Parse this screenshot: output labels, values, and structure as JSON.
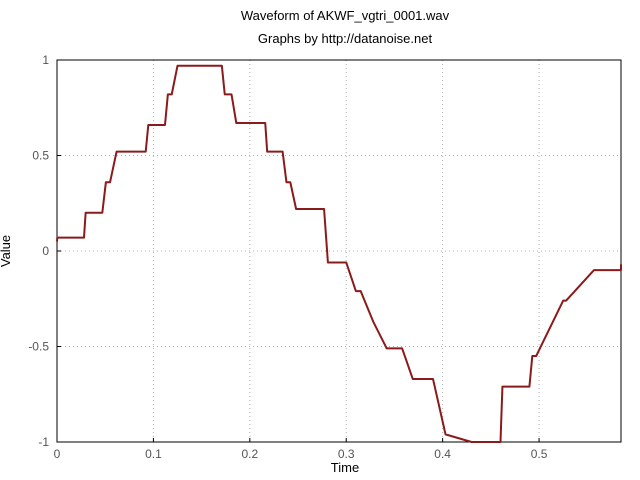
{
  "chart_data": {
    "type": "line",
    "title": "Waveform of AKWF_vgtri_0001.wav",
    "subtitle": "Graphs by http://datanoise.net",
    "xlabel": "Time",
    "ylabel": "Value",
    "xlim": [
      0,
      0.585
    ],
    "ylim": [
      -1,
      1
    ],
    "grid": true,
    "x_ticks": [
      {
        "value": 0,
        "label": "0"
      },
      {
        "value": 0.1,
        "label": "0.1"
      },
      {
        "value": 0.2,
        "label": "0.2"
      },
      {
        "value": 0.3,
        "label": "0.3"
      },
      {
        "value": 0.4,
        "label": "0.4"
      },
      {
        "value": 0.5,
        "label": "0.5"
      }
    ],
    "y_ticks": [
      {
        "value": 1,
        "label": "1"
      },
      {
        "value": 0.5,
        "label": "0.5"
      },
      {
        "value": 0,
        "label": "0"
      },
      {
        "value": -0.5,
        "label": "-0.5"
      },
      {
        "value": -1,
        "label": "-1"
      }
    ],
    "line_color": "#8b1a1a",
    "series": [
      {
        "x": [
          0,
          0.0003,
          0.028,
          0.0297,
          0.047,
          0.0507,
          0.055,
          0.0618,
          0.092,
          0.0947,
          0.112,
          0.115,
          0.119,
          0.125,
          0.171,
          0.174,
          0.181,
          0.186,
          0.216,
          0.218,
          0.234,
          0.238,
          0.242,
          0.248,
          0.277,
          0.281,
          0.3,
          0.31,
          0.315,
          0.328,
          0.342,
          0.358,
          0.369,
          0.39,
          0.403,
          0.43,
          0.46,
          0.462,
          0.49,
          0.493,
          0.497,
          0.525,
          0.528,
          0.557,
          0.56,
          0.585,
          0.588
        ],
        "y": [
          0.05,
          0.07,
          0.07,
          0.2,
          0.2,
          0.36,
          0.36,
          0.52,
          0.52,
          0.66,
          0.66,
          0.82,
          0.82,
          0.97,
          0.97,
          0.82,
          0.82,
          0.67,
          0.67,
          0.52,
          0.52,
          0.36,
          0.36,
          0.22,
          0.22,
          -0.06,
          -0.06,
          -0.21,
          -0.21,
          -0.37,
          -0.51,
          -0.51,
          -0.67,
          -0.67,
          -0.96,
          -1.0,
          -1.0,
          -0.71,
          -0.71,
          -0.55,
          -0.55,
          -0.26,
          -0.26,
          -0.1,
          -0.1,
          -0.1,
          -0.07
        ]
      }
    ]
  }
}
